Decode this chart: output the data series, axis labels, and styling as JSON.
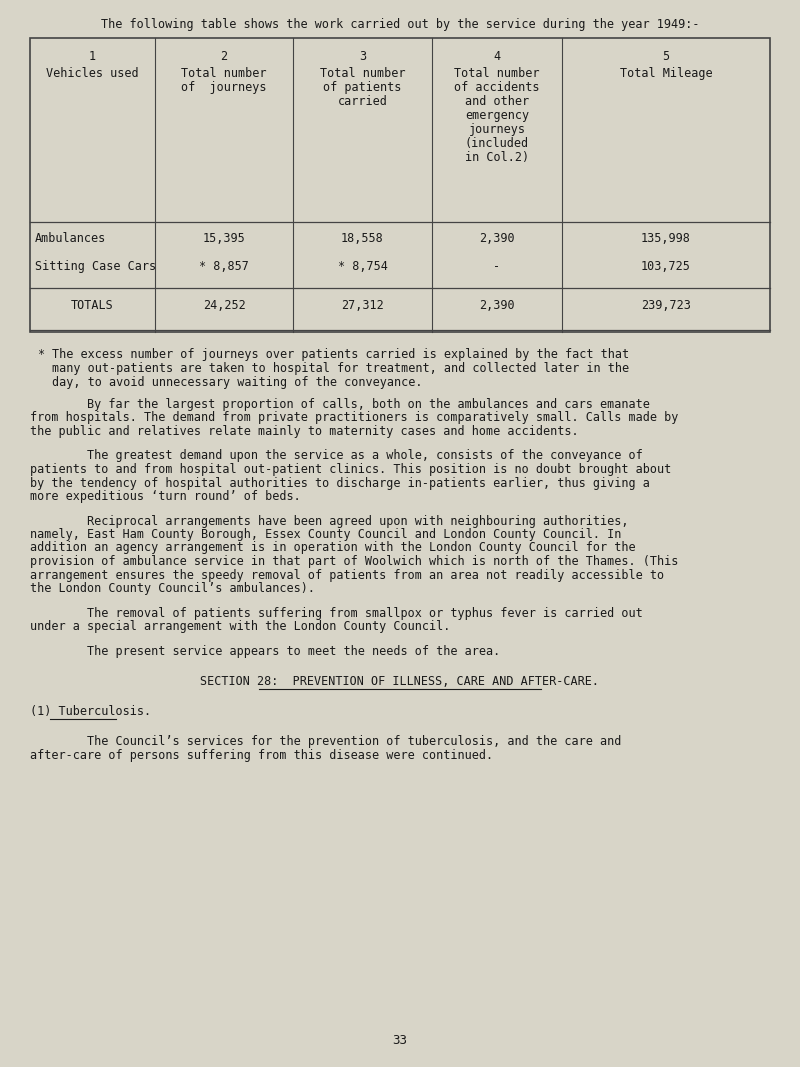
{
  "bg_color": "#d8d5c8",
  "text_color": "#1a1a1a",
  "page_title": "The following table shows the work carried out by the service during the year 1949:-",
  "col_headers": [
    [
      "1",
      "Vehicles used"
    ],
    [
      "2",
      "Total number",
      "of  journeys"
    ],
    [
      "3",
      "Total number",
      "of patients",
      "carried"
    ],
    [
      "4",
      "Total number",
      "of accidents",
      "and other",
      "emergency",
      "journeys",
      "(included",
      "in Col.2)"
    ],
    [
      "5",
      "Total Mileage"
    ]
  ],
  "rows": [
    [
      "Ambulances",
      "15,395",
      "18,558",
      "2,390",
      "135,998"
    ],
    [
      "Sitting Case Cars",
      "* 8,857",
      "* 8,754",
      "-",
      "103,725"
    ],
    [
      "TOTALS",
      "24,252",
      "27,312",
      "2,390",
      "239,723"
    ]
  ],
  "footnote_symbol": "*",
  "footnote_lines": [
    "The excess number of journeys over patients carried is explained by the fact that",
    "many out-patients are taken to hospital for treatment, and collected later in the",
    "day, to avoid unnecessary waiting of the conveyance."
  ],
  "paragraphs": [
    "By far the largest proportion of calls, both on the ambulances and cars emanate from hospitals.  The demand from private practitioners is comparatively small.  Calls made by the public and relatives relate mainly to maternity cases and home accidents.",
    "The greatest demand upon the service as a whole, consists of the conveyance of patients to and from hospital out-patient clinics.  This position is no doubt brought about by the tendency of hospital authorities to discharge in-patients earlier, thus giving a more expeditious ‘turn round’ of beds.",
    "Reciprocal arrangements have been agreed upon with neighbouring authorities, namely, East Ham County Borough, Essex County Council and London County Council.  In addition an agency arrangement is in operation with the London County Council for the provision of ambulance service in that part of Woolwich which is north of the Thames.  (This arrangement ensures the speedy removal of patients from an area not readily accessible to the London County Council’s ambulances).",
    "The removal of patients suffering from smallpox or typhus fever is carried out under a special arrangement with the London County Council.",
    "The present service appears to meet the needs of the area."
  ],
  "section_heading": "SECTION 28:  PREVENTION OF ILLNESS, CARE AND AFTER-CARE.",
  "subsection_heading": "(1) Tuberculosis.",
  "final_paragraph": "The Council’s services for the prevention of tuberculosis, and the care and after-care of persons suffering from this disease were continued.",
  "page_number": "33"
}
